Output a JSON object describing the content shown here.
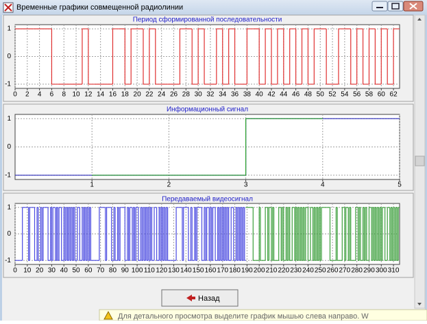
{
  "window": {
    "title": "Временные графики совмещенной радиолинии"
  },
  "button": {
    "label": "Назад"
  },
  "status": {
    "text": "Для детального просмотра выделите график мышью слева направо. W"
  },
  "chart_data": [
    {
      "type": "step",
      "title": "Период сформированной последовательности",
      "xlim": [
        0,
        63
      ],
      "xticks": [
        0,
        2,
        4,
        6,
        8,
        10,
        12,
        14,
        16,
        18,
        20,
        22,
        24,
        26,
        28,
        30,
        32,
        34,
        36,
        38,
        40,
        42,
        44,
        46,
        48,
        50,
        52,
        54,
        56,
        58,
        60,
        62
      ],
      "ylim": [
        -1.15,
        1.15
      ],
      "yticks": [
        -1,
        0,
        1
      ],
      "grid": true,
      "color": "#e03030",
      "values": [
        1,
        1,
        1,
        1,
        1,
        1,
        -1,
        -1,
        -1,
        -1,
        -1,
        1,
        -1,
        -1,
        -1,
        -1,
        1,
        1,
        -1,
        1,
        1,
        -1,
        1,
        -1,
        -1,
        -1,
        -1,
        1,
        1,
        -1,
        1,
        -1,
        -1,
        1,
        -1,
        1,
        -1,
        -1,
        1,
        1,
        -1,
        1,
        -1,
        1,
        -1,
        1,
        -1,
        1,
        -1,
        1,
        1,
        -1,
        -1,
        1,
        1,
        -1,
        1,
        -1,
        1,
        -1,
        1,
        -1,
        1
      ]
    },
    {
      "type": "step",
      "title": "Информационный сигнал",
      "xlim": [
        0,
        5
      ],
      "xticks": [
        1,
        2,
        3,
        4,
        5
      ],
      "ylim": [
        -1.15,
        1.15
      ],
      "yticks": [
        -1,
        0,
        1
      ],
      "grid": true,
      "series": [
        {
          "color": "#2828b8",
          "values": [
            -1,
            -1,
            -1,
            1,
            1
          ]
        },
        {
          "color": "#28a028",
          "values": [
            null,
            -1,
            -1,
            1,
            null
          ]
        }
      ]
    },
    {
      "type": "step",
      "title": "Передаваемый видеосигнал",
      "xlim": [
        0,
        315
      ],
      "xticks": [
        0,
        10,
        20,
        30,
        40,
        50,
        60,
        70,
        80,
        90,
        100,
        110,
        120,
        130,
        140,
        150,
        160,
        170,
        180,
        190,
        200,
        210,
        220,
        230,
        240,
        250,
        260,
        270,
        280,
        290,
        300,
        310
      ],
      "ylim": [
        -1.15,
        1.15
      ],
      "yticks": [
        -1,
        0,
        1
      ],
      "grid": true,
      "series": [
        {
          "color": "#4a4ae0",
          "values": [
            -1,
            -1,
            -1,
            -1,
            -1,
            -1,
            1,
            1,
            1,
            1,
            1,
            -1,
            1,
            1,
            1,
            1,
            -1,
            -1,
            1,
            -1,
            -1,
            1,
            -1,
            1,
            1,
            1,
            1,
            -1,
            -1,
            1,
            -1,
            1,
            1,
            -1,
            1,
            -1,
            1,
            1,
            -1,
            -1,
            1,
            -1,
            1,
            -1,
            1,
            -1,
            1,
            -1,
            1,
            -1,
            -1,
            1,
            1,
            -1,
            -1,
            1,
            -1,
            1,
            -1,
            1,
            -1,
            1,
            -1,
            -1,
            -1,
            -1,
            -1,
            -1,
            -1,
            1,
            1,
            1,
            1,
            1,
            -1,
            1,
            1,
            1,
            1,
            -1,
            -1,
            1,
            -1,
            -1,
            1,
            -1,
            1,
            1,
            1,
            1,
            -1,
            -1,
            1,
            -1,
            1,
            1,
            -1,
            1,
            -1,
            1,
            1,
            -1,
            -1,
            1,
            -1,
            1,
            -1,
            1,
            -1,
            1,
            -1,
            1,
            -1,
            -1,
            1,
            1,
            -1,
            -1,
            1,
            -1,
            1,
            -1,
            1,
            -1,
            1,
            -1,
            -1,
            -1,
            -1,
            -1,
            -1,
            -1,
            1,
            1,
            1,
            1,
            1,
            -1,
            1,
            1,
            1,
            1,
            -1,
            -1,
            1,
            -1,
            -1,
            1,
            -1,
            1,
            1,
            1,
            1,
            -1,
            -1,
            1,
            -1,
            1,
            1,
            -1,
            1,
            -1,
            1,
            1,
            -1,
            -1,
            1,
            -1,
            1,
            -1,
            1,
            -1,
            1,
            -1,
            1,
            -1,
            -1,
            1,
            1,
            -1,
            -1,
            1,
            -1,
            1,
            -1,
            1,
            -1,
            1,
            -1,
            null,
            null,
            null,
            null,
            null,
            null,
            null,
            null,
            null,
            null,
            null,
            null,
            null,
            null,
            null,
            null,
            null,
            null,
            null,
            null,
            null,
            null,
            null,
            null,
            null,
            null,
            null,
            null,
            null,
            null,
            null,
            null,
            null,
            null,
            null,
            null,
            null,
            null,
            null,
            null,
            null,
            null,
            null,
            null,
            null,
            null,
            null,
            null,
            null,
            null,
            null,
            null,
            null,
            null,
            null,
            null,
            null,
            null,
            null,
            null,
            null,
            null,
            null,
            null,
            null,
            null,
            null,
            null,
            null,
            null,
            null,
            null,
            null,
            null,
            null,
            null,
            null,
            null,
            null,
            null,
            null,
            null,
            null,
            null,
            null,
            null,
            null,
            null,
            null,
            null,
            null,
            null,
            null,
            null,
            null,
            null,
            null,
            null,
            null,
            null,
            null,
            null,
            null,
            null,
            null,
            null,
            null,
            null,
            null,
            null,
            null,
            null,
            null,
            null,
            null,
            null,
            null,
            null,
            null,
            null,
            null,
            null,
            null,
            null,
            null,
            null
          ]
        },
        {
          "color": "#3a9e3a",
          "values": [
            null,
            null,
            null,
            null,
            null,
            null,
            null,
            null,
            null,
            null,
            null,
            null,
            null,
            null,
            null,
            null,
            null,
            null,
            null,
            null,
            null,
            null,
            null,
            null,
            null,
            null,
            null,
            null,
            null,
            null,
            null,
            null,
            null,
            null,
            null,
            null,
            null,
            null,
            null,
            null,
            null,
            null,
            null,
            null,
            null,
            null,
            null,
            null,
            null,
            null,
            null,
            null,
            null,
            null,
            null,
            null,
            null,
            null,
            null,
            null,
            null,
            null,
            null,
            null,
            null,
            null,
            null,
            null,
            null,
            null,
            null,
            null,
            null,
            null,
            null,
            null,
            null,
            null,
            null,
            null,
            null,
            null,
            null,
            null,
            null,
            null,
            null,
            null,
            null,
            null,
            null,
            null,
            null,
            null,
            null,
            null,
            null,
            null,
            null,
            null,
            null,
            null,
            null,
            null,
            null,
            null,
            null,
            null,
            null,
            null,
            null,
            null,
            null,
            null,
            null,
            null,
            null,
            null,
            null,
            null,
            null,
            null,
            null,
            null,
            null,
            null,
            null,
            null,
            null,
            null,
            null,
            null,
            null,
            null,
            null,
            null,
            null,
            null,
            null,
            null,
            null,
            null,
            null,
            null,
            null,
            null,
            null,
            null,
            null,
            null,
            null,
            null,
            null,
            null,
            null,
            null,
            null,
            null,
            null,
            null,
            null,
            null,
            null,
            null,
            null,
            null,
            null,
            null,
            null,
            null,
            null,
            null,
            null,
            null,
            null,
            null,
            null,
            null,
            null,
            null,
            null,
            null,
            null,
            null,
            null,
            null,
            null,
            null,
            null,
            1,
            1,
            1,
            1,
            1,
            1,
            -1,
            -1,
            -1,
            -1,
            -1,
            1,
            -1,
            -1,
            -1,
            -1,
            1,
            1,
            -1,
            1,
            1,
            -1,
            1,
            -1,
            -1,
            -1,
            -1,
            1,
            1,
            -1,
            1,
            -1,
            -1,
            1,
            -1,
            1,
            -1,
            -1,
            1,
            1,
            -1,
            1,
            -1,
            1,
            -1,
            1,
            -1,
            1,
            -1,
            1,
            1,
            -1,
            -1,
            1,
            1,
            -1,
            1,
            -1,
            1,
            -1,
            1,
            -1,
            1,
            1,
            1,
            1,
            1,
            1,
            1,
            -1,
            -1,
            -1,
            -1,
            -1,
            1,
            -1,
            -1,
            -1,
            -1,
            1,
            1,
            -1,
            1,
            1,
            -1,
            1,
            -1,
            -1,
            -1,
            -1,
            1,
            1,
            -1,
            1,
            -1,
            -1,
            1,
            -1,
            1,
            -1,
            -1,
            1,
            1,
            -1,
            1,
            -1,
            1,
            -1,
            1,
            -1,
            1,
            -1,
            1,
            1,
            -1,
            -1,
            1,
            1,
            -1,
            1,
            -1,
            1,
            -1,
            1,
            -1,
            1
          ]
        }
      ]
    }
  ]
}
